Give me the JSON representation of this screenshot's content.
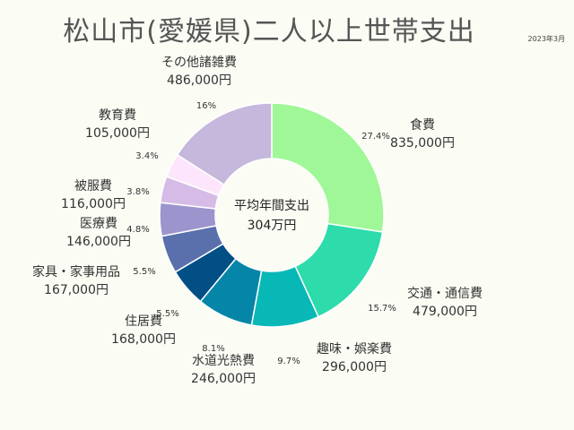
{
  "header": {
    "title": "松山市(愛媛県)二人以上世帯支出",
    "date": "2023年3月"
  },
  "chart_data": {
    "type": "pie",
    "title": "松山市(愛媛県)二人以上世帯支出",
    "center_label": "平均年間支出",
    "center_value": "304万円",
    "slices": [
      {
        "name": "食費",
        "value": 835000,
        "value_label": "835,000円",
        "percent": "27.4%",
        "color": "#a0f797"
      },
      {
        "name": "交通・通信費",
        "value": 479000,
        "value_label": "479,000円",
        "percent": "15.7%",
        "color": "#2ddbab"
      },
      {
        "name": "趣味・娯楽費",
        "value": 296000,
        "value_label": "296,000円",
        "percent": "9.7%",
        "color": "#08b8b6"
      },
      {
        "name": "水道光熱費",
        "value": 246000,
        "value_label": "246,000円",
        "percent": "8.1%",
        "color": "#0586a8"
      },
      {
        "name": "住居費",
        "value": 168000,
        "value_label": "168,000円",
        "percent": "5.5%",
        "color": "#024f86"
      },
      {
        "name": "家具・家事用品",
        "value": 167000,
        "value_label": "167,000円",
        "percent": "5.5%",
        "color": "#5a70ac"
      },
      {
        "name": "医療費",
        "value": 146000,
        "value_label": "146,000円",
        "percent": "4.8%",
        "color": "#9c94cc"
      },
      {
        "name": "被服費",
        "value": 116000,
        "value_label": "116,000円",
        "percent": "3.8%",
        "color": "#d5bbe6"
      },
      {
        "name": "教育費",
        "value": 105000,
        "value_label": "105,000円",
        "percent": "3.4%",
        "color": "#fde6fc"
      },
      {
        "name": "その他諸雑費",
        "value": 486000,
        "value_label": "486,000円",
        "percent": "16%",
        "color": "#c5b8dc"
      }
    ]
  }
}
